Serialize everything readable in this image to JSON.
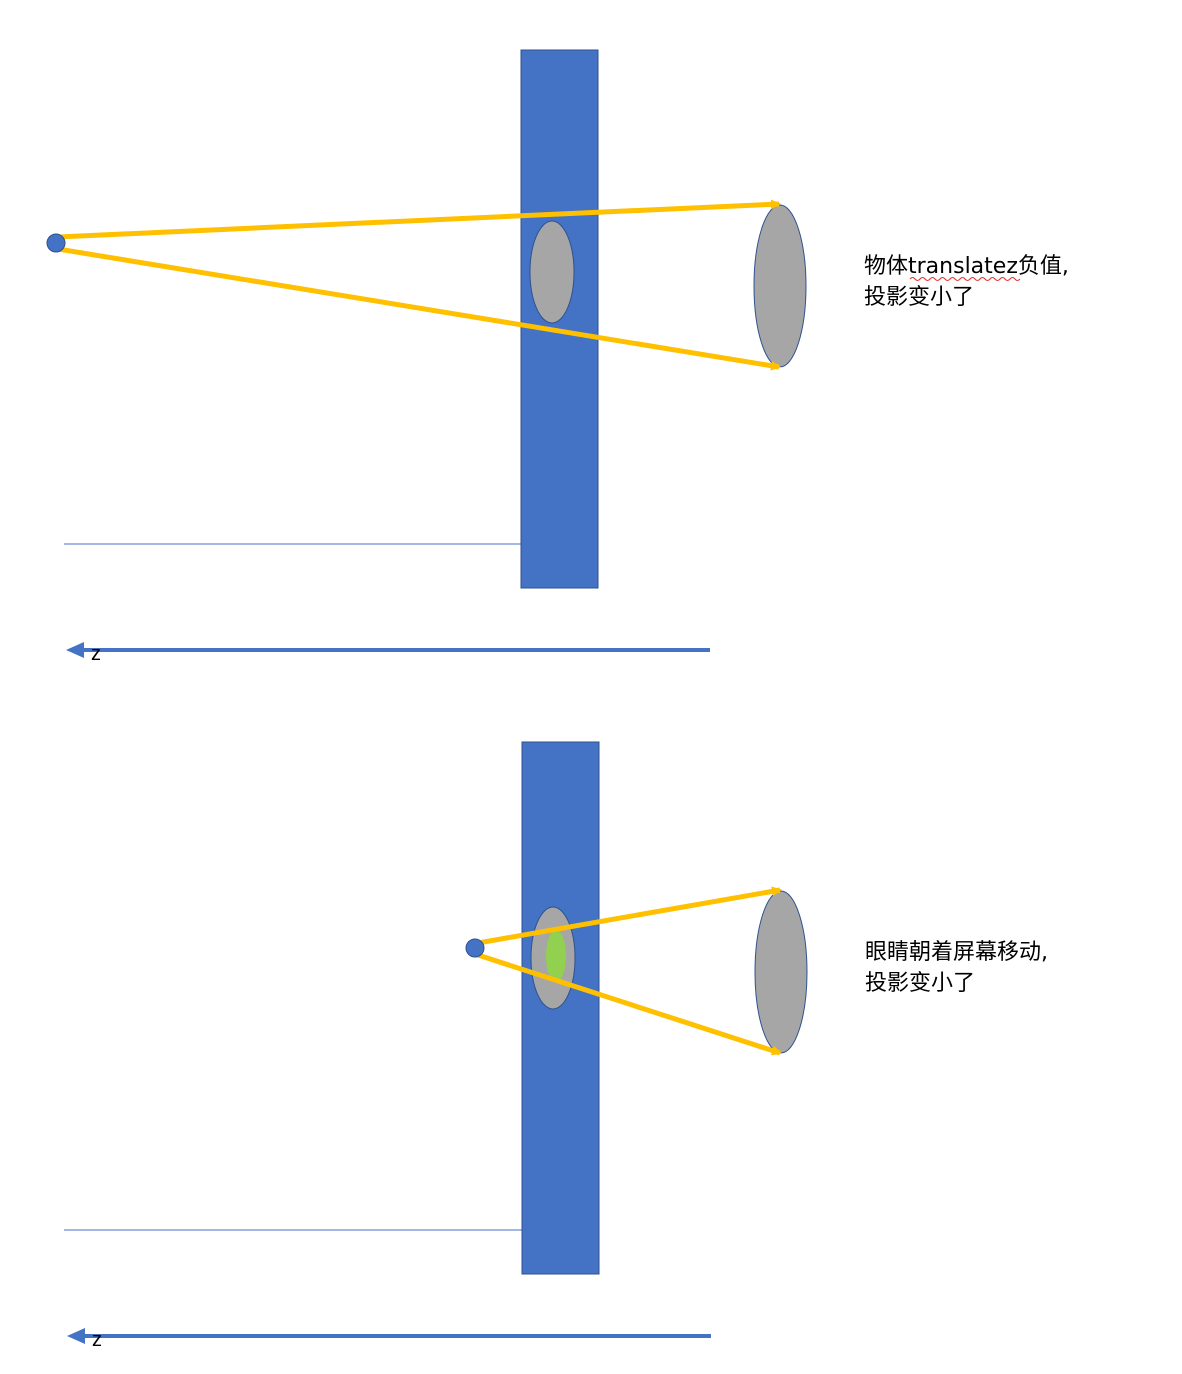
{
  "colors": {
    "screen": "#4472C4",
    "ray": "#FFC000",
    "object": "#A6A6A6",
    "projection_overlap": "#92D050",
    "eye": "#4472C4",
    "axis": "#4472C4",
    "baseline": "#4472C4",
    "spellcheck_underline": "#E03030"
  },
  "panels": [
    {
      "axis_label": "z",
      "caption_line1_part1": "物体",
      "caption_line1_part2": "translatez",
      "caption_line1_part3": "负值,",
      "caption_line2": "投影变小了"
    },
    {
      "axis_label": "z",
      "caption_line1": "眼睛朝着屏幕移动,",
      "caption_line2": "投影变小了"
    }
  ]
}
